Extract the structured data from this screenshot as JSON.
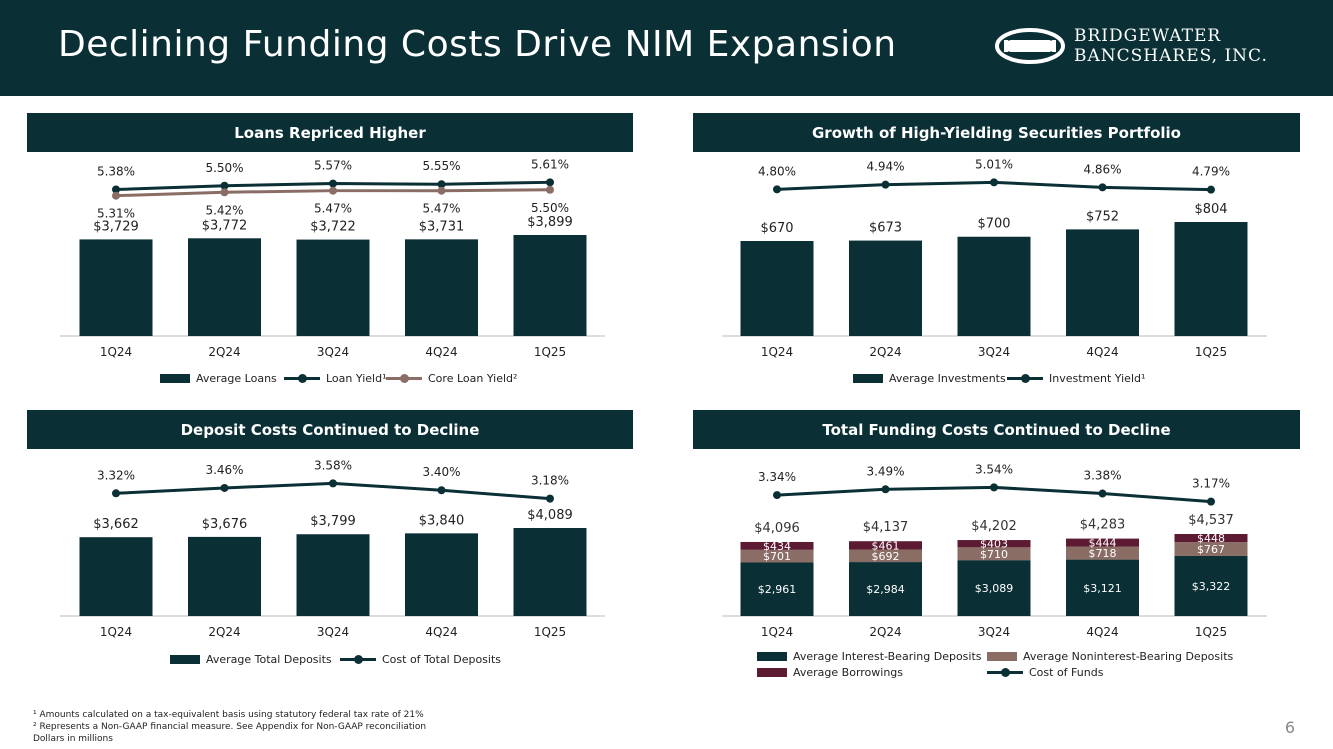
{
  "header": {
    "title": "Declining Funding Costs Drive NIM Expansion",
    "logo_line1": "BRIDGEWATER",
    "logo_line2": "BANCSHARES, INC."
  },
  "colors": {
    "dark": "#0a2f35",
    "taupe": "#8a6d65",
    "maroon": "#5c1a33"
  },
  "chart_data": [
    {
      "type": "bar",
      "title": "Loans Repriced Higher",
      "categories": [
        "1Q24",
        "2Q24",
        "3Q24",
        "4Q24",
        "1Q25"
      ],
      "series": [
        {
          "name": "Average Loans",
          "kind": "bar",
          "values": [
            3729,
            3772,
            3722,
            3731,
            3899
          ],
          "labels": [
            "$3,729",
            "$3,772",
            "$3,722",
            "$3,731",
            "$3,899"
          ]
        },
        {
          "name": "Loan Yield¹",
          "kind": "line",
          "values": [
            5.38,
            5.5,
            5.57,
            5.55,
            5.61
          ],
          "labels": [
            "5.38%",
            "5.50%",
            "5.57%",
            "5.55%",
            "5.61%"
          ]
        },
        {
          "name": "Core Loan Yield²",
          "kind": "line",
          "values": [
            5.31,
            5.42,
            5.47,
            5.47,
            5.5
          ],
          "labels": [
            "5.31%",
            "5.42%",
            "5.47%",
            "5.47%",
            "5.50%"
          ]
        }
      ]
    },
    {
      "type": "bar",
      "title": "Growth of High-Yielding Securities Portfolio",
      "categories": [
        "1Q24",
        "2Q24",
        "3Q24",
        "4Q24",
        "1Q25"
      ],
      "series": [
        {
          "name": "Average Investments",
          "kind": "bar",
          "values": [
            670,
            673,
            700,
            752,
            804
          ],
          "labels": [
            "$670",
            "$673",
            "$700",
            "$752",
            "$804"
          ]
        },
        {
          "name": "Investment Yield¹",
          "kind": "line",
          "values": [
            4.8,
            4.94,
            5.01,
            4.86,
            4.79
          ],
          "labels": [
            "4.80%",
            "4.94%",
            "5.01%",
            "4.86%",
            "4.79%"
          ]
        }
      ]
    },
    {
      "type": "bar",
      "title": "Deposit Costs Continued to Decline",
      "categories": [
        "1Q24",
        "2Q24",
        "3Q24",
        "4Q24",
        "1Q25"
      ],
      "series": [
        {
          "name": "Average Total Deposits",
          "kind": "bar",
          "values": [
            3662,
            3676,
            3799,
            3840,
            4089
          ],
          "labels": [
            "$3,662",
            "$3,676",
            "$3,799",
            "$3,840",
            "$4,089"
          ]
        },
        {
          "name": "Cost of Total Deposits",
          "kind": "line",
          "values": [
            3.32,
            3.46,
            3.58,
            3.4,
            3.18
          ],
          "labels": [
            "3.32%",
            "3.46%",
            "3.58%",
            "3.40%",
            "3.18%"
          ]
        }
      ]
    },
    {
      "type": "bar",
      "stacked": true,
      "title": "Total Funding Costs Continued to Decline",
      "categories": [
        "1Q24",
        "2Q24",
        "3Q24",
        "4Q24",
        "1Q25"
      ],
      "totals": [
        "$4,096",
        "$4,137",
        "$4,202",
        "$4,283",
        "$4,537"
      ],
      "series": [
        {
          "name": "Average Interest-Bearing Deposits",
          "kind": "stack",
          "values": [
            2961,
            2984,
            3089,
            3121,
            3322
          ],
          "labels": [
            "$2,961",
            "$2,984",
            "$3,089",
            "$3,121",
            "$3,322"
          ]
        },
        {
          "name": "Average Noninterest-Bearing Deposits",
          "kind": "stack",
          "values": [
            701,
            692,
            710,
            718,
            767
          ],
          "labels": [
            "$701",
            "$692",
            "$710",
            "$718",
            "$767"
          ]
        },
        {
          "name": "Average Borrowings",
          "kind": "stack",
          "values": [
            434,
            461,
            403,
            444,
            448
          ],
          "labels": [
            "$434",
            "$461",
            "$403",
            "$444",
            "$448"
          ]
        },
        {
          "name": "Cost of Funds",
          "kind": "line",
          "values": [
            3.34,
            3.49,
            3.54,
            3.38,
            3.17
          ],
          "labels": [
            "3.34%",
            "3.49%",
            "3.54%",
            "3.38%",
            "3.17%"
          ]
        }
      ]
    }
  ],
  "legends": {
    "loans": [
      "Average Loans",
      "Loan Yield¹",
      "Core Loan Yield²"
    ],
    "investments": [
      "Average Investments",
      "Investment Yield¹"
    ],
    "deposits": [
      "Average Total Deposits",
      "Cost of Total Deposits"
    ],
    "funding": [
      "Average Interest-Bearing Deposits",
      "Average Noninterest-Bearing Deposits",
      "Average Borrowings",
      "Cost of Funds"
    ]
  },
  "footnotes": {
    "note1": "¹ Amounts calculated on a tax-equivalent basis using statutory federal tax rate of 21%",
    "note2": "² Represents a Non-GAAP financial measure. See Appendix for Non-GAAP reconciliation",
    "note3": "Dollars in millions"
  },
  "page_number": "6"
}
